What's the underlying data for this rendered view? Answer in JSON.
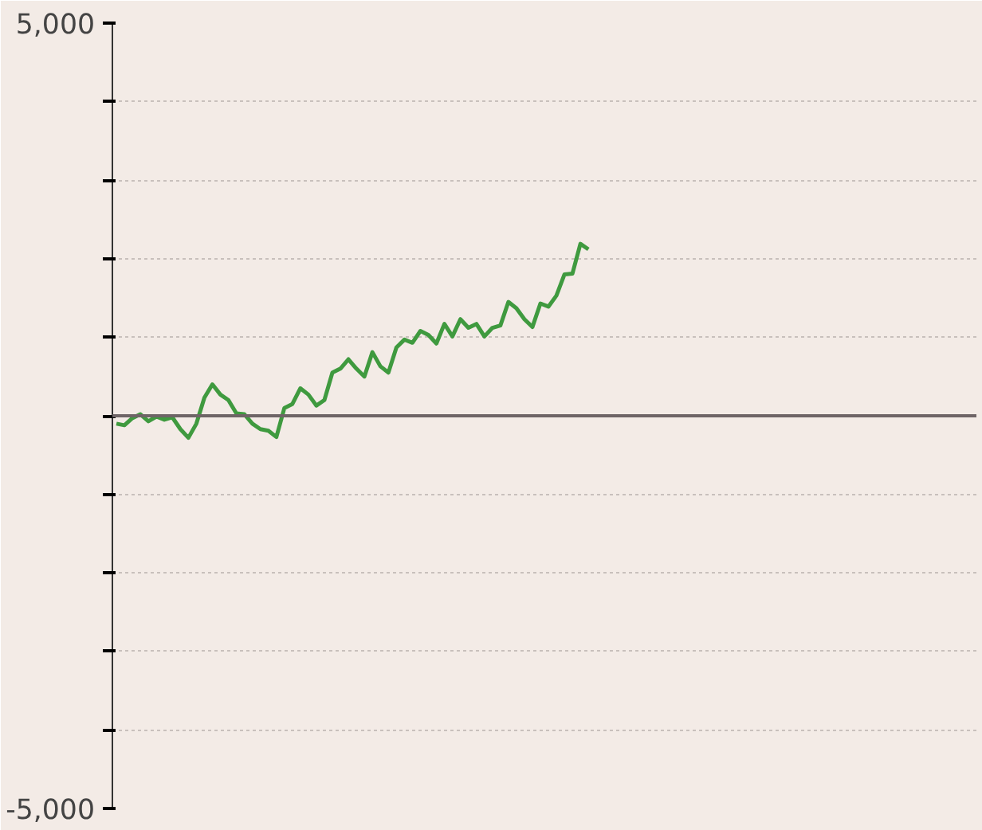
{
  "chart_data": {
    "type": "line",
    "categories": [
      null,
      null,
      null,
      null,
      null,
      null,
      null,
      null,
      null,
      null,
      null,
      null,
      null,
      null,
      null,
      null,
      null,
      null,
      null,
      null,
      null,
      null,
      null,
      null,
      null,
      null,
      null,
      null,
      null,
      null,
      null,
      null,
      null,
      null,
      null,
      null,
      null,
      null,
      null,
      null,
      null,
      null,
      null,
      null,
      null,
      null,
      null,
      null,
      null,
      null,
      null,
      null,
      null,
      null,
      null,
      null,
      null,
      null,
      null,
      null,
      null,
      null,
      null,
      null,
      null,
      null,
      null,
      null,
      null,
      null,
      null,
      null,
      null,
      null,
      null,
      null,
      null,
      null,
      null,
      null,
      null,
      null,
      null,
      null,
      null,
      null,
      null,
      null,
      null,
      null,
      null,
      null,
      null,
      null,
      null,
      null,
      null,
      null,
      null,
      null,
      null,
      null,
      null,
      null,
      null,
      null,
      null,
      null
    ],
    "series": [
      {
        "color": "#3f9a3f",
        "values": [
          -100,
          -120,
          -30,
          20,
          -70,
          -10,
          -50,
          -20,
          -170,
          -280,
          -100,
          230,
          400,
          270,
          200,
          30,
          20,
          -100,
          -170,
          -190,
          -270,
          100,
          150,
          350,
          270,
          130,
          200,
          550,
          600,
          720,
          600,
          500,
          810,
          630,
          550,
          870,
          970,
          930,
          1080,
          1030,
          920,
          1170,
          1010,
          1230,
          1120,
          1170,
          1010,
          1120,
          1150,
          1450,
          1370,
          1230,
          1130,
          1430,
          1390,
          1530,
          1800,
          1810,
          2190,
          2120,
          null,
          null,
          null,
          null,
          null,
          null,
          null,
          null,
          null,
          null,
          null,
          null,
          null,
          null,
          null,
          null,
          null,
          null,
          null,
          null,
          null,
          null,
          null,
          null,
          null,
          null,
          null,
          null,
          null,
          null,
          null,
          null,
          null,
          null,
          null,
          null,
          null,
          null,
          null,
          null,
          null,
          null,
          null,
          null,
          null,
          null,
          null,
          null
        ]
      }
    ],
    "ylim": [
      -5000,
      5000
    ],
    "yticks": [
      {
        "value": -5000,
        "label": "-5,000"
      },
      {
        "value": -4000,
        "label": null
      },
      {
        "value": -3000,
        "label": null
      },
      {
        "value": -2000,
        "label": null
      },
      {
        "value": -1000,
        "label": null
      },
      {
        "value": 0,
        "label": null
      },
      {
        "value": 1000,
        "label": null
      },
      {
        "value": 2000,
        "label": null
      },
      {
        "value": 3000,
        "label": null
      },
      {
        "value": 4000,
        "label": null
      },
      {
        "value": 5000,
        "label": "5,000"
      }
    ],
    "ref_lines": [
      {
        "axis": "y",
        "value": 0,
        "color": "#6e6466"
      }
    ],
    "grid": "y",
    "tick_labels": "y",
    "marker": "none",
    "line_style": "solid"
  }
}
